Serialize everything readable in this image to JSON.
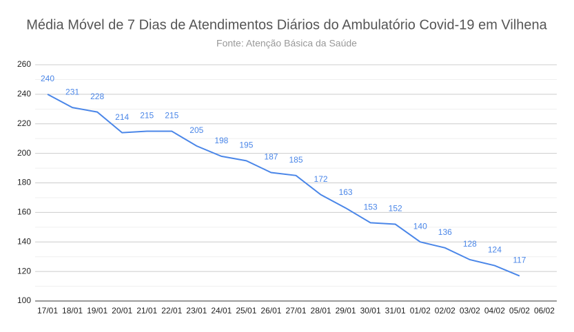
{
  "chart_data": {
    "type": "line",
    "title": "Média Móvel de 7 Dias de Atendimentos Diários do Ambulatório Covid-19 em Vilhena",
    "subtitle": "Fonte: Atenção Básica da Saúde",
    "categories": [
      "17/01",
      "18/01",
      "19/01",
      "20/01",
      "21/01",
      "22/01",
      "23/01",
      "24/01",
      "25/01",
      "26/01",
      "27/01",
      "28/01",
      "29/01",
      "30/01",
      "31/01",
      "01/02",
      "02/02",
      "03/02",
      "04/02",
      "05/02",
      "06/02"
    ],
    "series": [
      {
        "name": "Média Móvel",
        "color": "#4a86e8",
        "values": [
          240,
          231,
          228,
          214,
          215,
          215,
          205,
          198,
          195,
          187,
          185,
          172,
          163,
          153,
          152,
          140,
          136,
          128,
          124,
          117,
          null
        ]
      }
    ],
    "ylim": [
      100,
      260
    ],
    "yticks": [
      100,
      120,
      140,
      160,
      180,
      200,
      220,
      240,
      260
    ],
    "grid": true
  }
}
